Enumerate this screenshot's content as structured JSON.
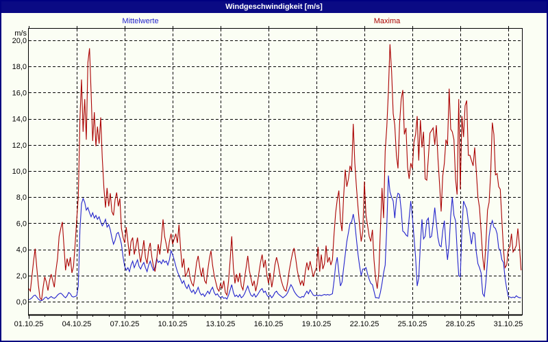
{
  "window": {
    "title": "Windgeschwindigkeit [m/s]"
  },
  "legend": [
    {
      "label": "Mittelwerte",
      "color": "#2222cc"
    },
    {
      "label": "Maxima",
      "color": "#aa0000"
    }
  ],
  "chart_data": {
    "type": "line",
    "title": "Windgeschwindigkeit [m/s]",
    "ylabel": "m/s",
    "xlabel": "",
    "x_unit": "day of month (October 2025)",
    "grid": "dashed",
    "legend_position": "top",
    "ylim": [
      -1.0,
      20.9
    ],
    "xlim": [
      1.0,
      31.86
    ],
    "y_ticks": [
      0,
      2,
      4,
      6,
      8,
      10,
      12,
      14,
      16,
      18,
      20
    ],
    "y_tick_labels": [
      "0,0",
      "2,0",
      "4,0",
      "6,0",
      "8,0",
      "10,0",
      "12,0",
      "14,0",
      "16,0",
      "18,0",
      "20,0"
    ],
    "x_tick_days": [
      1,
      4,
      7,
      10,
      13,
      16,
      19,
      22,
      25,
      28,
      31
    ],
    "x_tick_labels": [
      "01.10.25",
      "04.10.25",
      "07.10.25",
      "10.10.25",
      "13.10.25",
      "16.10.25",
      "19.10.25",
      "22.10.25",
      "25.10.25",
      "28.10.25",
      "31.10.25"
    ],
    "t_start": 1.0,
    "t_step": 0.1,
    "series": [
      {
        "name": "Mittelwerte",
        "color": "#2222cc",
        "values": [
          0.15,
          0.2,
          0.3,
          0.45,
          0.5,
          0.35,
          0.2,
          0.1,
          0.08,
          0.15,
          0.3,
          0.35,
          0.2,
          0.3,
          0.4,
          0.3,
          0.25,
          0.35,
          0.5,
          0.6,
          0.65,
          0.55,
          0.4,
          0.3,
          0.45,
          0.7,
          0.6,
          0.4,
          0.35,
          0.4,
          0.45,
          1.2,
          5.5,
          7.5,
          7.9,
          7.6,
          7.0,
          7.2,
          6.8,
          6.5,
          6.8,
          6.4,
          6.6,
          6.3,
          6.5,
          6.1,
          5.8,
          6.0,
          6.3,
          5.7,
          5.9,
          5.5,
          4.9,
          4.4,
          4.7,
          5.2,
          5.3,
          4.9,
          4.4,
          3.4,
          2.7,
          2.4,
          2.6,
          2.3,
          2.8,
          3.1,
          2.6,
          2.9,
          3.2,
          2.7,
          2.5,
          2.8,
          3.0,
          2.6,
          2.3,
          2.8,
          3.1,
          2.7,
          2.4,
          2.6,
          3.3,
          3.0,
          3.1,
          2.9,
          3.2,
          3.0,
          3.1,
          2.8,
          3.2,
          3.9,
          3.6,
          3.2,
          2.7,
          2.3,
          2.0,
          1.7,
          1.4,
          1.6,
          1.2,
          1.0,
          1.3,
          0.9,
          0.7,
          0.9,
          0.6,
          0.8,
          1.1,
          0.7,
          0.5,
          0.6,
          0.4,
          0.6,
          0.8,
          0.6,
          0.9,
          1.1,
          0.7,
          0.5,
          0.6,
          0.4,
          0.3,
          0.4,
          0.25,
          0.3,
          0.2,
          0.5,
          0.9,
          1.3,
          0.7,
          0.4,
          0.5,
          0.35,
          0.55,
          0.3,
          0.4,
          0.6,
          0.9,
          1.2,
          0.8,
          0.5,
          0.4,
          0.6,
          0.35,
          0.5,
          0.7,
          0.9,
          1.0,
          0.7,
          0.8,
          0.5,
          0.35,
          0.5,
          0.3,
          0.45,
          0.7,
          0.8,
          0.6,
          0.5,
          0.4,
          0.3,
          0.4,
          0.5,
          0.7,
          1.0,
          1.3,
          1.1,
          0.8,
          0.6,
          0.45,
          0.35,
          0.3,
          0.4,
          0.35,
          0.6,
          0.8,
          0.6,
          0.9,
          0.7,
          0.5,
          0.45,
          0.5,
          0.45,
          0.5,
          0.45,
          0.5,
          0.55,
          0.5,
          0.55,
          0.5,
          0.55,
          0.6,
          1.6,
          2.8,
          3.4,
          2.2,
          1.2,
          1.5,
          2.6,
          3.6,
          4.6,
          5.3,
          6.0,
          6.1,
          6.7,
          6.0,
          4.8,
          3.6,
          2.7,
          2.0,
          2.5,
          2.5,
          2.6,
          2.1,
          1.7,
          1.4,
          1.3,
          0.8,
          0.3,
          0.3,
          0.25,
          0.7,
          1.4,
          2.2,
          2.8,
          5.8,
          9.65,
          8.4,
          8.0,
          7.7,
          6.4,
          7.8,
          8.3,
          8.2,
          7.0,
          5.4,
          5.3,
          5.1,
          5.0,
          6.4,
          7.7,
          6.5,
          5.0,
          3.4,
          1.2,
          1.8,
          4.4,
          6.3,
          4.8,
          5.0,
          6.2,
          6.4,
          4.9,
          5.0,
          6.0,
          7.2,
          6.0,
          4.9,
          4.3,
          4.2,
          5.4,
          6.2,
          4.4,
          3.2,
          4.4,
          6.6,
          8.0,
          6.6,
          6.2,
          4.0,
          2.0,
          1.9,
          5.5,
          7.7,
          7.4,
          7.1,
          6.1,
          5.2,
          4.4,
          5.3,
          5.2,
          3.8,
          2.9,
          2.6,
          2.2,
          0.6,
          0.4,
          1.5,
          3.2,
          5.0,
          5.8,
          6.2,
          5.7,
          5.6,
          5.2,
          4.1,
          3.9,
          3.2,
          3.0,
          1.8,
          1.0,
          0.4,
          0.35,
          0.3,
          0.35,
          0.3,
          0.45,
          0.35,
          0.3,
          0.3
        ]
      },
      {
        "name": "Maxima",
        "color": "#aa0000",
        "values": [
          1.0,
          0.8,
          2.0,
          3.1,
          4.05,
          2.6,
          1.3,
          0.3,
          0.15,
          1.1,
          1.9,
          1.5,
          0.85,
          1.6,
          2.1,
          1.6,
          1.1,
          2.4,
          3.3,
          5.0,
          5.6,
          6.1,
          4.3,
          2.4,
          3.3,
          2.7,
          3.4,
          2.2,
          2.7,
          4.4,
          6.3,
          8.0,
          14.0,
          17.0,
          13.0,
          15.5,
          12.4,
          18.3,
          19.4,
          16.0,
          12.3,
          14.5,
          11.9,
          13.4,
          12.1,
          14.1,
          11.0,
          8.7,
          7.2,
          8.7,
          7.3,
          8.3,
          6.9,
          6.6,
          7.8,
          8.35,
          7.3,
          7.9,
          5.6,
          4.9,
          4.5,
          5.7,
          4.6,
          3.5,
          4.6,
          4.9,
          3.6,
          4.2,
          4.9,
          3.8,
          3.0,
          3.8,
          4.7,
          3.4,
          2.9,
          4.0,
          4.5,
          3.4,
          2.7,
          2.3,
          3.2,
          4.4,
          3.6,
          4.8,
          6.3,
          5.0,
          4.4,
          3.7,
          4.6,
          5.2,
          4.4,
          4.8,
          5.2,
          4.5,
          5.9,
          4.0,
          2.6,
          3.3,
          1.9,
          2.2,
          2.6,
          1.8,
          1.4,
          1.2,
          2.0,
          3.0,
          3.5,
          2.6,
          1.9,
          2.6,
          1.6,
          1.4,
          2.4,
          3.3,
          3.9,
          2.8,
          2.0,
          1.5,
          1.0,
          0.8,
          1.4,
          1.0,
          1.6,
          0.7,
          0.5,
          1.6,
          3.2,
          5.0,
          2.6,
          1.4,
          2.1,
          1.5,
          2.2,
          1.2,
          0.9,
          1.8,
          2.6,
          3.5,
          2.4,
          1.8,
          1.2,
          1.6,
          0.8,
          1.4,
          2.2,
          3.0,
          3.6,
          2.6,
          3.2,
          2.0,
          1.4,
          2.2,
          1.1,
          1.8,
          2.8,
          3.4,
          2.9,
          2.2,
          1.6,
          1.2,
          0.9,
          0.8,
          1.5,
          2.4,
          3.1,
          3.7,
          4.1,
          3.3,
          2.4,
          1.8,
          1.3,
          1.6,
          1.2,
          2.3,
          3.0,
          2.4,
          3.1,
          2.5,
          1.9,
          2.3,
          2.6,
          4.2,
          2.3,
          3.6,
          2.5,
          2.9,
          4.3,
          3.0,
          3.4,
          2.8,
          3.2,
          5.2,
          6.8,
          7.8,
          8.5,
          6.2,
          5.4,
          8.1,
          10.1,
          8.8,
          9.4,
          10.4,
          10.0,
          13.6,
          10.6,
          8.8,
          7.2,
          5.8,
          4.6,
          5.4,
          9.2,
          6.6,
          5.8,
          5.0,
          4.6,
          5.5,
          3.2,
          1.8,
          1.0,
          2.2,
          5.5,
          8.7,
          6.4,
          11.5,
          13.4,
          16.1,
          19.7,
          17.6,
          14.4,
          13.5,
          11.2,
          10.2,
          13.6,
          15.5,
          16.2,
          12.8,
          13.3,
          10.3,
          9.4,
          10.6,
          10.2,
          12.2,
          12.8,
          14.2,
          10.8,
          13.9,
          11.8,
          13.0,
          9.4,
          9.3,
          11.0,
          12.9,
          13.1,
          13.3,
          12.0,
          13.5,
          11.0,
          9.0,
          6.9,
          9.6,
          10.6,
          12.4,
          12.0,
          16.3,
          13.2,
          13.0,
          12.4,
          9.4,
          8.2,
          15.5,
          8.6,
          14.2,
          12.6,
          15.0,
          15.4,
          11.2,
          11.2,
          10.8,
          10.4,
          11.8,
          10.0,
          8.0,
          7.2,
          5.4,
          3.4,
          2.4,
          4.4,
          7.0,
          7.6,
          9.8,
          13.7,
          12.8,
          9.7,
          9.8,
          8.8,
          8.6,
          6.2,
          4.0,
          2.6,
          2.8,
          4.0,
          4.2,
          5.2,
          3.8,
          4.0,
          4.3,
          5.6,
          4.3,
          2.4
        ]
      }
    ]
  }
}
